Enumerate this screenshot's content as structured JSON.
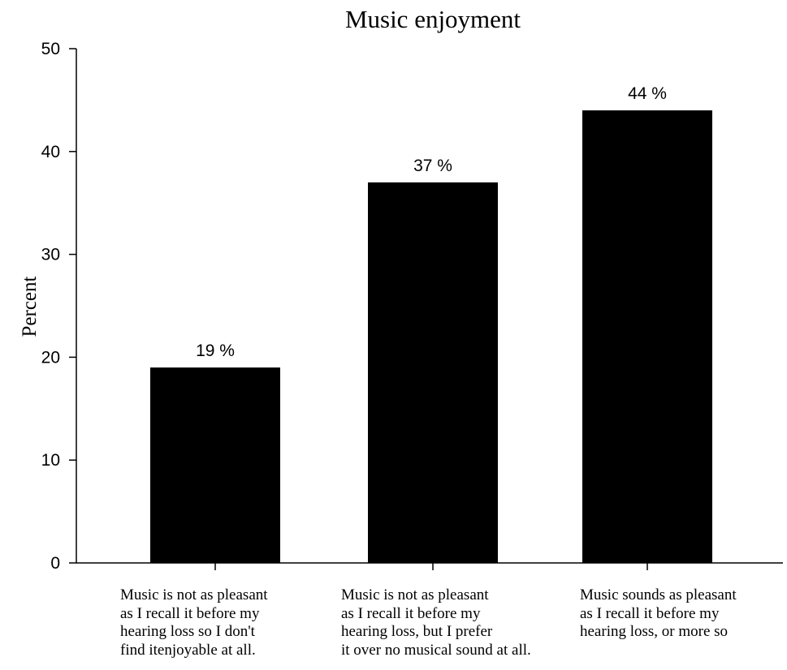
{
  "chart_data": {
    "type": "bar",
    "title": "Music enjoyment",
    "xlabel": "",
    "ylabel": "Percent",
    "ylim": [
      0,
      50
    ],
    "yticks": [
      0,
      10,
      20,
      30,
      40,
      50
    ],
    "grid": false,
    "legend": "none",
    "bar_color": "#000000",
    "categories": [
      "Music is not as pleasant\nas I recall it before my\nhearing loss so I don't\nfind itenjoyable at all.",
      "Music is not as pleasant\nas I recall it before my\nhearing loss, but I prefer\nit over no musical sound at all.",
      "Music sounds as pleasant\nas I recall it before my\nhearing loss, or more so"
    ],
    "values": [
      19,
      37,
      44
    ],
    "data_labels": [
      "19 %",
      "37 %",
      "44 %"
    ]
  }
}
